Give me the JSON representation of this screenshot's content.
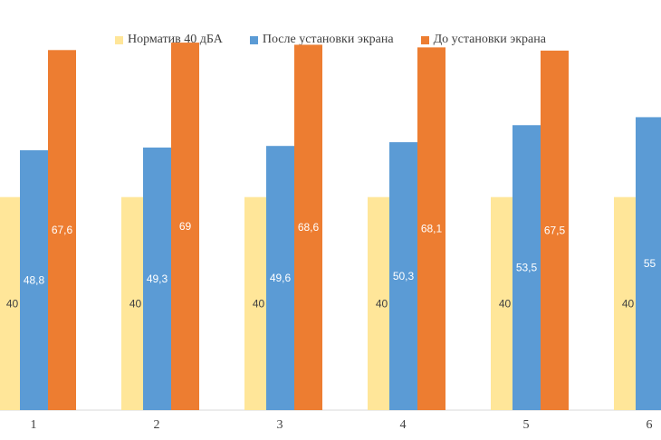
{
  "chart_data": {
    "type": "bar",
    "categories": [
      "1",
      "2",
      "3",
      "4",
      "5",
      "6"
    ],
    "series": [
      {
        "name": "Норматив 40 дБА",
        "color": "#FFE699",
        "values": [
          40,
          40,
          40,
          40,
          40,
          40
        ]
      },
      {
        "name": "После установки экрана",
        "color": "#5B9BD5",
        "values": [
          48.8,
          49.3,
          49.6,
          50.3,
          53.5,
          55
        ]
      },
      {
        "name": "До установки экрана",
        "color": "#ED7D31",
        "values": [
          67.6,
          69,
          68.6,
          68.1,
          67.5,
          null
        ]
      }
    ],
    "data_labels": [
      [
        "40",
        "40",
        "40",
        "40",
        "40",
        "40"
      ],
      [
        "48,8",
        "49,3",
        "49,6",
        "50,3",
        "53,5",
        "55"
      ],
      [
        "67,6",
        "69",
        "68,6",
        "68,1",
        "67,5",
        ""
      ]
    ],
    "ylim": [
      0,
      77
    ],
    "legend_position": "top",
    "grid": false
  }
}
